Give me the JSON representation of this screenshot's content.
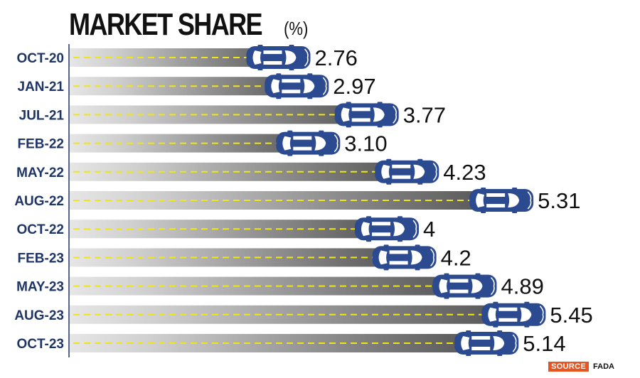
{
  "chart_data": {
    "type": "bar",
    "title": "MARKET SHARE",
    "subtitle": "(%)",
    "categories": [
      "OCT-20",
      "JAN-21",
      "JUL-21",
      "FEB-22",
      "MAY-22",
      "AUG-22",
      "OCT-22",
      "FEB-23",
      "MAY-23",
      "AUG-23",
      "OCT-23"
    ],
    "values": [
      2.76,
      2.97,
      3.77,
      3.1,
      4.23,
      5.31,
      4,
      4.2,
      4.89,
      5.45,
      5.14
    ],
    "value_labels": [
      "2.76",
      "2.97",
      "3.77",
      "3.10",
      "4.23",
      "5.31",
      "4",
      "4.2",
      "4.89",
      "5.45",
      "5.14"
    ],
    "orientation": "horizontal",
    "grid": false,
    "legend": "none"
  },
  "source": {
    "tag": "SOURCE",
    "name": "FADA"
  },
  "colors": {
    "car_body": "#2b4a8f",
    "car_window": "#ffffff",
    "road_dash": "#f0e616",
    "road_light": "#e4e4e4",
    "road_dark": "#4a4a4a",
    "category_text": "#1e3566",
    "source_tag": "#e8541f"
  }
}
